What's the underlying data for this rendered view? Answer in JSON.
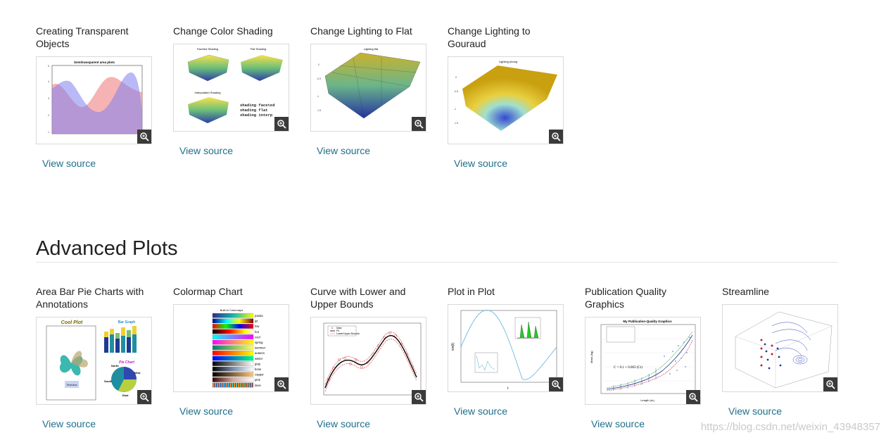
{
  "top_cards": [
    {
      "title": "Creating Transparent Objects",
      "view_source": "View source",
      "thumb_title": "Semitransparent area plots"
    },
    {
      "title": "Change Color Shading",
      "view_source": "View source",
      "thumb_title": "Faceted Shading",
      "thumb_title2": "Flat Shading",
      "thumb_title3": "Interpolated Shading",
      "code_lines": [
        "shading faceted",
        "shading flat",
        "shading interp"
      ]
    },
    {
      "title": "Change Lighting to Flat",
      "view_source": "View source",
      "thumb_title": "Lighting flat"
    },
    {
      "title": "Change Lighting to Gouraud",
      "view_source": "View source",
      "thumb_title": "Lighting phong"
    }
  ],
  "section": {
    "title": "Advanced Plots"
  },
  "bottom_cards": [
    {
      "title": "Area Bar Pie Charts with Annotations",
      "view_source": "View source",
      "thumb_title": "Cool Plot",
      "thumb_title2": "Bar Graph",
      "thumb_title3": "Pie Chart",
      "text_box": "Text box",
      "pie_labels": [
        "North",
        "West",
        "South",
        "East"
      ]
    },
    {
      "title": "Colormap Chart",
      "view_source": "View source",
      "thumb_title": "Built-in Colormaps",
      "colormaps": [
        "parula",
        "jet",
        "hsv",
        "hot",
        "cool",
        "spring",
        "summer",
        "autumn",
        "winter",
        "gray",
        "bone",
        "copper",
        "pink",
        "lines"
      ]
    },
    {
      "title": "Curve with Lower and Upper Bounds",
      "view_source": "View source",
      "legend": [
        "Data",
        "Fit",
        "Lower/Upper Bounds"
      ]
    },
    {
      "title": "Plot in Plot",
      "view_source": "View source",
      "ylabel": "sin(t)",
      "xlabel": "t"
    },
    {
      "title": "Publication Quality Graphics",
      "view_source": "View source",
      "thumb_title": "My Publication-Quality Graphics",
      "equation": "C = 0.1 + 0.003 (Ct)",
      "xlabel": "Length (m)",
      "ylabel": "Mass (kg)"
    },
    {
      "title": "Streamline",
      "view_source": "View source"
    }
  ],
  "watermark": "https://blog.csdn.net/weixin_43948357",
  "colors": {
    "link": "#1f6f8b",
    "rule": "#e3e3e3",
    "thumb_border": "#d9d9d9"
  }
}
